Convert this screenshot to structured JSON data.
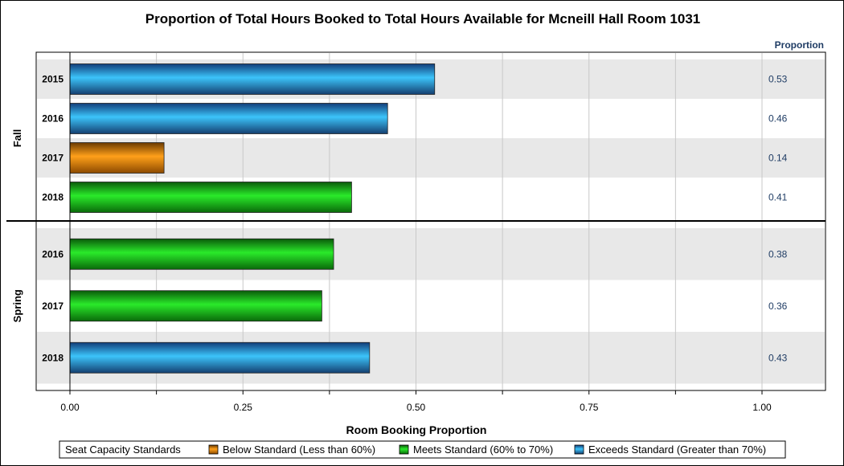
{
  "chart_data": {
    "type": "bar",
    "orientation": "horizontal",
    "title": "Proportion of Total Hours Booked to Total Hours Available for Mcneill Hall Room 1031",
    "xlabel": "Room Booking Proportion",
    "value_column_header": "Proportion",
    "xlim": [
      0,
      1.1
    ],
    "xticks": [
      "0.00",
      "0.25",
      "0.50",
      "0.75",
      "1.00"
    ],
    "xtick_values": [
      0,
      0.25,
      0.5,
      0.75,
      1.0
    ],
    "grid": true,
    "groups": [
      {
        "name": "Fall",
        "rows": [
          {
            "category": "2015",
            "value": 0.527,
            "label": "0.53",
            "standard": "exceeds"
          },
          {
            "category": "2016",
            "value": 0.459,
            "label": "0.46",
            "standard": "exceeds"
          },
          {
            "category": "2017",
            "value": 0.136,
            "label": "0.14",
            "standard": "below"
          },
          {
            "category": "2018",
            "value": 0.407,
            "label": "0.41",
            "standard": "meets"
          }
        ]
      },
      {
        "name": "Spring",
        "rows": [
          {
            "category": "2016",
            "value": 0.381,
            "label": "0.38",
            "standard": "meets"
          },
          {
            "category": "2017",
            "value": 0.364,
            "label": "0.36",
            "standard": "meets"
          },
          {
            "category": "2018",
            "value": 0.433,
            "label": "0.43",
            "standard": "exceeds"
          }
        ]
      }
    ],
    "legend": {
      "title": "Seat Capacity Standards",
      "placement": "bottom",
      "items": [
        {
          "key": "below",
          "label": "Below Standard (Less than 60%)",
          "color": "#ff9a00"
        },
        {
          "key": "meets",
          "label": "Meets Standard (60% to 70%)",
          "color": "#1ec81e"
        },
        {
          "key": "exceeds",
          "label": "Exceeds Standard (Greater than 70%)",
          "color": "#3ab4f0"
        }
      ]
    },
    "colors": {
      "below": [
        "#6b3a00",
        "#ffa01a",
        "#8c4a00"
      ],
      "meets": [
        "#0a5a0a",
        "#2aea2a",
        "#0a6a0a"
      ],
      "exceeds": [
        "#123e7a",
        "#3cc4fa",
        "#143f70"
      ],
      "band": "#e8e8e8",
      "gridline": "#c8c8c8"
    }
  }
}
